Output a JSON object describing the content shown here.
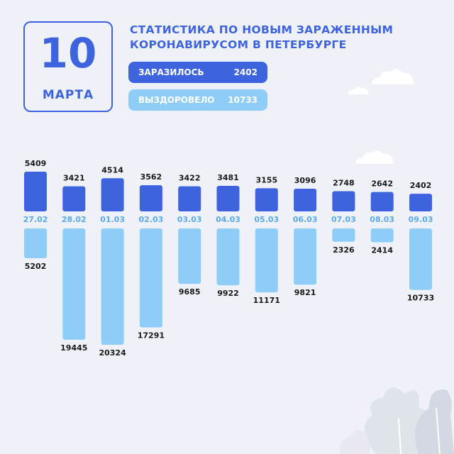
{
  "date": {
    "day": "10",
    "month": "МАРТА"
  },
  "title": {
    "line1": "СТАТИСТИКА ПО НОВЫМ ЗАРАЖЕННЫМ",
    "line2": "КОРОНАВИРУСОМ В ПЕТЕРБУРГЕ"
  },
  "summary": {
    "infected": {
      "label": "ЗАРАЗИЛОСЬ",
      "value": "2402"
    },
    "recovered": {
      "label": "ВЫЗДОРОВЕЛО",
      "value": "10733"
    }
  },
  "colors": {
    "infected": "#3d63de",
    "recovered": "#8ecdf7",
    "date_label": "#5aa9ef",
    "value_text": "#1a1a1a",
    "background": "#eef1f7"
  },
  "chart_data": {
    "type": "bar",
    "categories": [
      "27.02",
      "28.02",
      "01.03",
      "02.03",
      "03.03",
      "04.03",
      "05.03",
      "06.03",
      "07.03",
      "08.03",
      "09.03"
    ],
    "series": [
      {
        "name": "ЗАРАЗИЛОСЬ",
        "values": [
          5409,
          3421,
          4514,
          3562,
          3422,
          3481,
          3155,
          3096,
          2748,
          2642,
          2402
        ]
      },
      {
        "name": "ВЫЗДОРОВЕЛО",
        "values": [
          5202,
          19445,
          20324,
          17291,
          9685,
          9922,
          11171,
          9821,
          2326,
          2414,
          10733
        ]
      }
    ]
  }
}
